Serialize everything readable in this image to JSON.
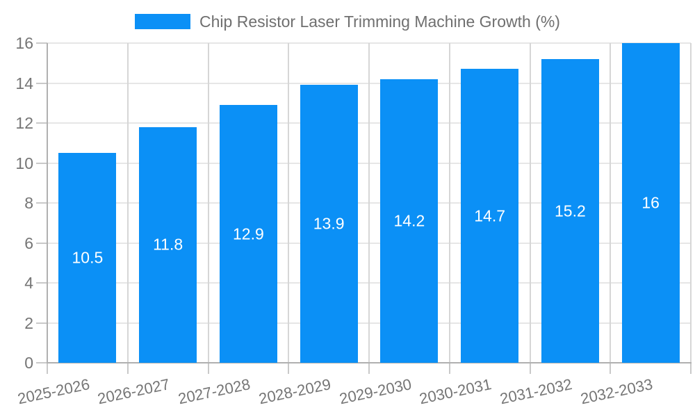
{
  "chart_data": {
    "type": "bar",
    "title": "Chip Resistor Laser Trimming Machine Growth (%)",
    "categories": [
      "2025-2026",
      "2026-2027",
      "2027-2028",
      "2028-2029",
      "2029-2030",
      "2030-2031",
      "2031-2032",
      "2032-2033"
    ],
    "values": [
      10.5,
      11.8,
      12.9,
      13.9,
      14.2,
      14.7,
      15.2,
      16
    ],
    "value_labels": [
      "10.5",
      "11.8",
      "12.9",
      "13.9",
      "14.2",
      "14.7",
      "15.2",
      "16"
    ],
    "xlabel": "",
    "ylabel": "",
    "ylim": [
      0,
      16
    ],
    "yticks": [
      0,
      2,
      4,
      6,
      8,
      10,
      12,
      14,
      16
    ],
    "grid": "on",
    "legend_position": "top-center",
    "colors": {
      "bar": "#0b90f6",
      "bar_value_text": "#ffffff",
      "title_text": "#6f6f6f",
      "axis_text": "#757575",
      "h_grid": "#e6e6e6",
      "v_grid": "#d6d6d6",
      "axis_line": "#b0b0b0",
      "tick_line": "#c9c9c9",
      "background": "#ffffff"
    }
  }
}
